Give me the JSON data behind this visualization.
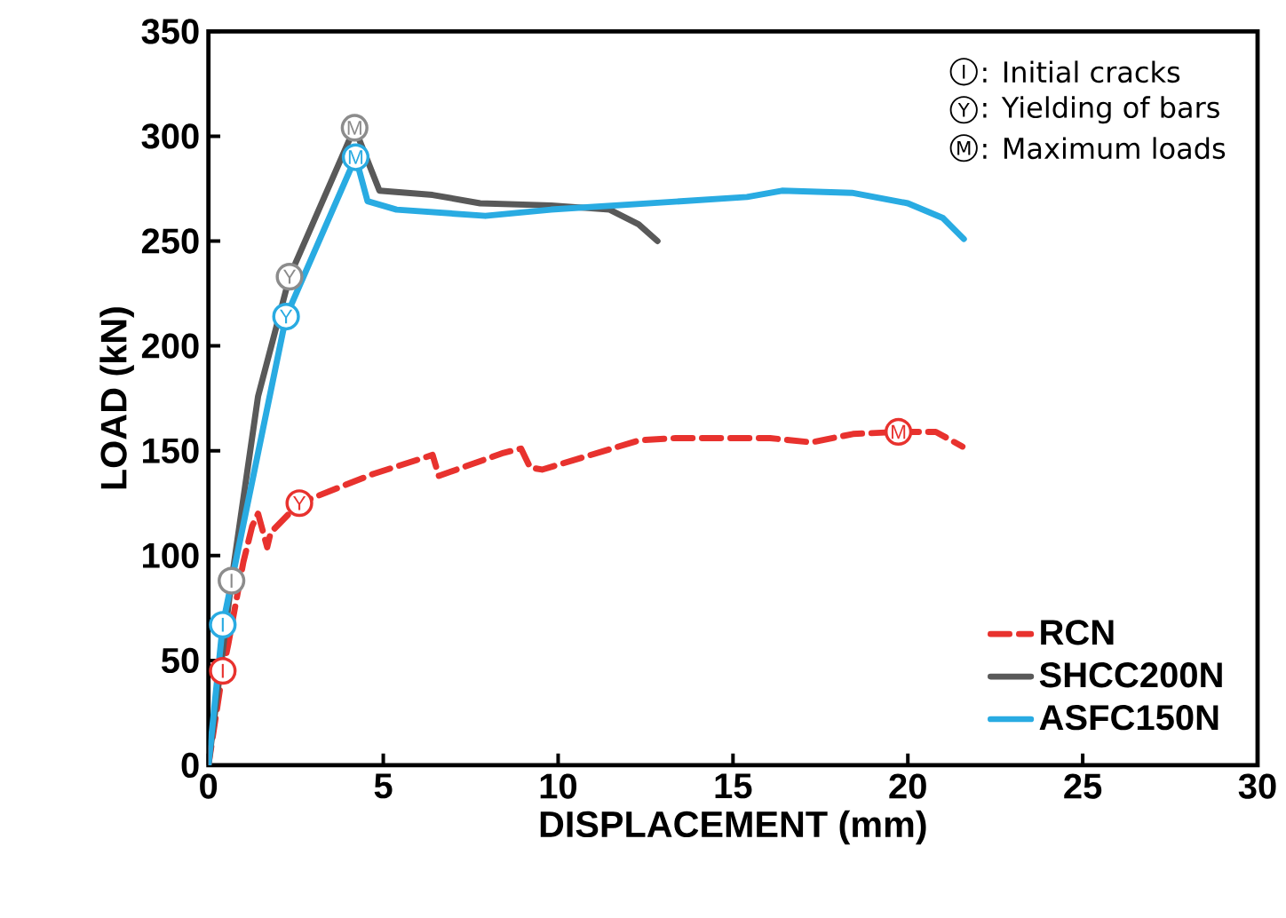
{
  "chart_data": {
    "type": "line",
    "xlabel": "DISPLACEMENT (mm)",
    "ylabel": "LOAD (kN)",
    "xlim": [
      0,
      30
    ],
    "ylim": [
      0,
      350
    ],
    "xticks": [
      0,
      5,
      10,
      15,
      20,
      25,
      30
    ],
    "yticks": [
      0,
      50,
      100,
      150,
      200,
      250,
      300,
      350
    ],
    "grid": false,
    "legend": "bottom right",
    "annotations": [
      "I",
      ": Initial cracks",
      "Y",
      ": Yielding of bars",
      "M",
      ": Maximum loads"
    ],
    "series": [
      {
        "name": "RCN",
        "color": "#e8322e",
        "line_style": "dashed",
        "x": [
          0,
          0.41,
          0.57,
          1.0,
          1.25,
          1.42,
          1.68,
          1.78,
          2.6,
          4.72,
          6.41,
          6.59,
          8.44,
          8.94,
          9.2,
          9.54,
          12.33,
          13.35,
          16.06,
          17.24,
          18.43,
          19.73,
          20.8,
          21.56
        ],
        "values": [
          0,
          45,
          58,
          97,
          114,
          120,
          104,
          111,
          125,
          139,
          148,
          138,
          149,
          151,
          142,
          141,
          155,
          156,
          156,
          154,
          158,
          159,
          159,
          152
        ]
      },
      {
        "name": "SHCC200N",
        "color": "#595959",
        "line_style": "solid",
        "x": [
          0,
          0.66,
          1.42,
          2.32,
          4.18,
          4.89,
          6.41,
          7.77,
          9.8,
          11.47,
          12.3,
          12.84
        ],
        "values": [
          0,
          88,
          176,
          233,
          304,
          274,
          272,
          268,
          267,
          265,
          258,
          250
        ]
      },
      {
        "name": "ASFC150N",
        "color": "#29abe2",
        "line_style": "solid",
        "x": [
          0,
          0.41,
          2.22,
          4.21,
          4.55,
          5.38,
          7.92,
          9.8,
          15.4,
          16.4,
          18.4,
          20,
          21,
          21.6
        ],
        "values": [
          0,
          67,
          214,
          290,
          269,
          265,
          262,
          265,
          271,
          274,
          273,
          268,
          261,
          251
        ]
      },
      {
        "type": "scatter",
        "color": "#e8322e",
        "marker": "circle",
        "x": [
          0.41,
          2.6,
          19.73
        ],
        "values": [
          45,
          125,
          159
        ],
        "value_labels": [
          "I",
          "Y",
          "M"
        ]
      },
      {
        "type": "scatter",
        "color": "#8c8c8c",
        "marker": "circle",
        "x": [
          0.66,
          2.32,
          4.18
        ],
        "values": [
          88,
          233,
          304
        ],
        "value_labels": [
          "I",
          "Y",
          "M"
        ]
      },
      {
        "type": "scatter",
        "color": "#29abe2",
        "marker": "circle",
        "x": [
          0.41,
          2.22,
          4.21
        ],
        "values": [
          67,
          214,
          290
        ],
        "value_labels": [
          "I",
          "Y",
          "M"
        ]
      }
    ]
  }
}
